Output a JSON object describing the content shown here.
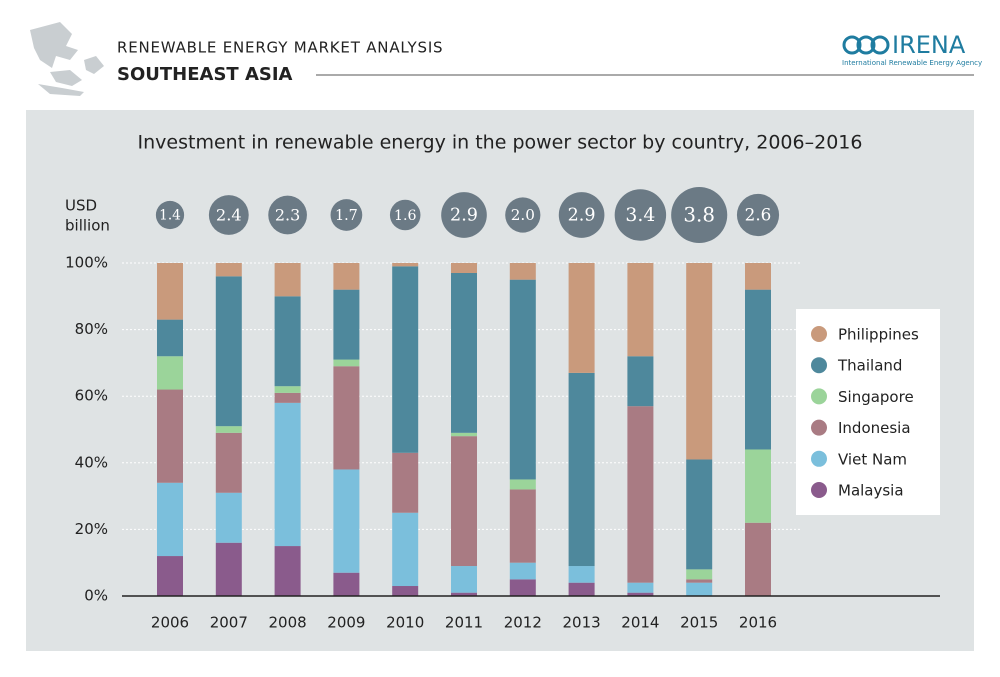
{
  "header": {
    "kicker": "RENEWABLE ENERGY MARKET ANALYSIS",
    "title": "SOUTHEAST ASIA",
    "logo": "IRENA",
    "logo_subtitle": "International Renewable Energy Agency"
  },
  "chart_data": {
    "type": "stacked_bar",
    "title": "Investment in renewable energy in the power sector by country, 2006–2016",
    "categories": [
      "2006",
      "2007",
      "2008",
      "2009",
      "2010",
      "2011",
      "2012",
      "2013",
      "2014",
      "2015",
      "2016"
    ],
    "series": [
      {
        "name": "Malaysia",
        "color": "#8a5b8c",
        "values": [
          12,
          16,
          15,
          7,
          3,
          1,
          5,
          4,
          1,
          0,
          0
        ]
      },
      {
        "name": "Viet Nam",
        "color": "#7bbfdc",
        "values": [
          22,
          15,
          43,
          31,
          22,
          8,
          5,
          5,
          3,
          4,
          0
        ]
      },
      {
        "name": "Indonesia",
        "color": "#a97b83",
        "values": [
          28,
          18,
          3,
          31,
          18,
          39,
          22,
          0,
          53,
          1,
          22
        ]
      },
      {
        "name": "Singapore",
        "color": "#9bd49a",
        "values": [
          10,
          2,
          2,
          2,
          0,
          1,
          3,
          0,
          0,
          3,
          22
        ]
      },
      {
        "name": "Thailand",
        "color": "#4e889c",
        "values": [
          11,
          45,
          27,
          21,
          56,
          48,
          60,
          58,
          15,
          33,
          48
        ]
      },
      {
        "name": "Philippines",
        "color": "#c99a7c",
        "values": [
          17,
          4,
          10,
          8,
          1,
          3,
          5,
          33,
          28,
          59,
          8
        ]
      }
    ],
    "totals": {
      "label": [
        "USD",
        "billion"
      ],
      "color": "#6b7a85",
      "values": [
        1.4,
        2.4,
        2.3,
        1.7,
        1.6,
        2.9,
        2.0,
        2.9,
        3.4,
        3.8,
        2.6
      ],
      "value_labels": [
        "1.4",
        "2.4",
        "2.3",
        "1.7",
        "1.6",
        "2.9",
        "2.0",
        "2.9",
        "3.4",
        "3.8",
        "2.6"
      ]
    },
    "ylim": [
      0,
      100
    ],
    "yticks": [
      {
        "value": 0,
        "label": "0%"
      },
      {
        "value": 20,
        "label": "20%"
      },
      {
        "value": 40,
        "label": "40%"
      },
      {
        "value": 60,
        "label": "60%"
      },
      {
        "value": 80,
        "label": "80%"
      },
      {
        "value": 100,
        "label": "100%"
      }
    ],
    "grid": true,
    "legend": "right"
  }
}
